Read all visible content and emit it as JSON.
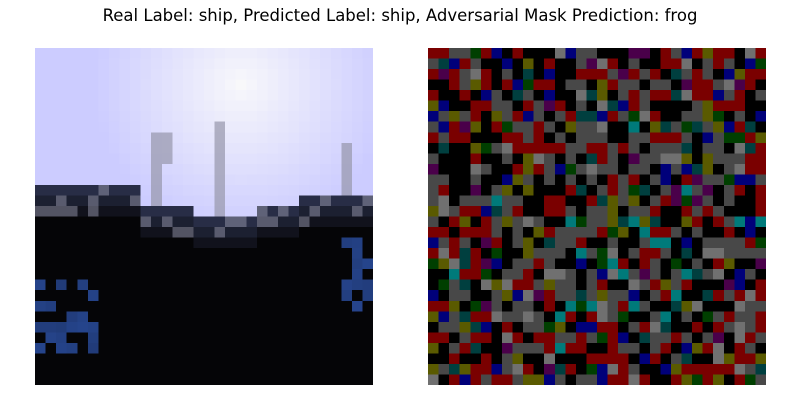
{
  "title": "Real Label: ship, Predicted Label: ship, Adversarial Mask Prediction: frog",
  "images": {
    "original": {
      "grid": 32,
      "colors": {
        "sky_top": "#ccccff",
        "sky_glow": "#fafafa",
        "ground": "#050507",
        "blue_accent": "#2a4d9e"
      }
    },
    "mask": {
      "grid": 32,
      "palette": [
        "#000000",
        "#7a0000",
        "#484848",
        "#707070",
        "#5a5a00",
        "#003f3f",
        "#007a7a",
        "#00007a",
        "#003f00",
        "#4a004a"
      ]
    }
  }
}
